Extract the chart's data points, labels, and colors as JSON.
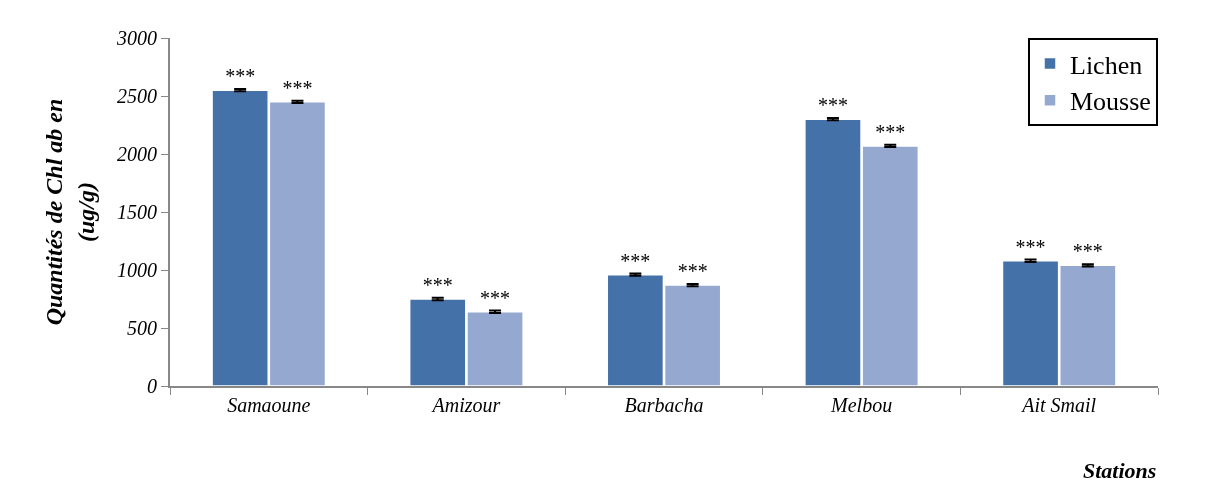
{
  "chart_data": {
    "type": "bar",
    "xlabel": "Stations",
    "ylabel": "Quantités de Chl ab en\n(ug/g)",
    "categories": [
      "Samaoune",
      "Amizour",
      "Barbacha",
      "Melbou",
      "Ait Smail"
    ],
    "series": [
      {
        "name": "Lichen",
        "color": "#4472a8",
        "values": [
          2550,
          750,
          960,
          2300,
          1080
        ],
        "errors": [
          10,
          10,
          10,
          10,
          10
        ],
        "value_labels": [
          "***",
          "***",
          "***",
          "***",
          "***"
        ]
      },
      {
        "name": "Mousse",
        "color": "#95a9d0",
        "values": [
          2450,
          640,
          870,
          2070,
          1040
        ],
        "errors": [
          10,
          10,
          10,
          10,
          10
        ],
        "value_labels": [
          "***",
          "***",
          "***",
          "***",
          "***"
        ]
      }
    ],
    "ylim": [
      0,
      3000
    ],
    "yticks": [
      0,
      500,
      1000,
      1500,
      2000,
      2500,
      3000
    ],
    "legend": "top right"
  }
}
